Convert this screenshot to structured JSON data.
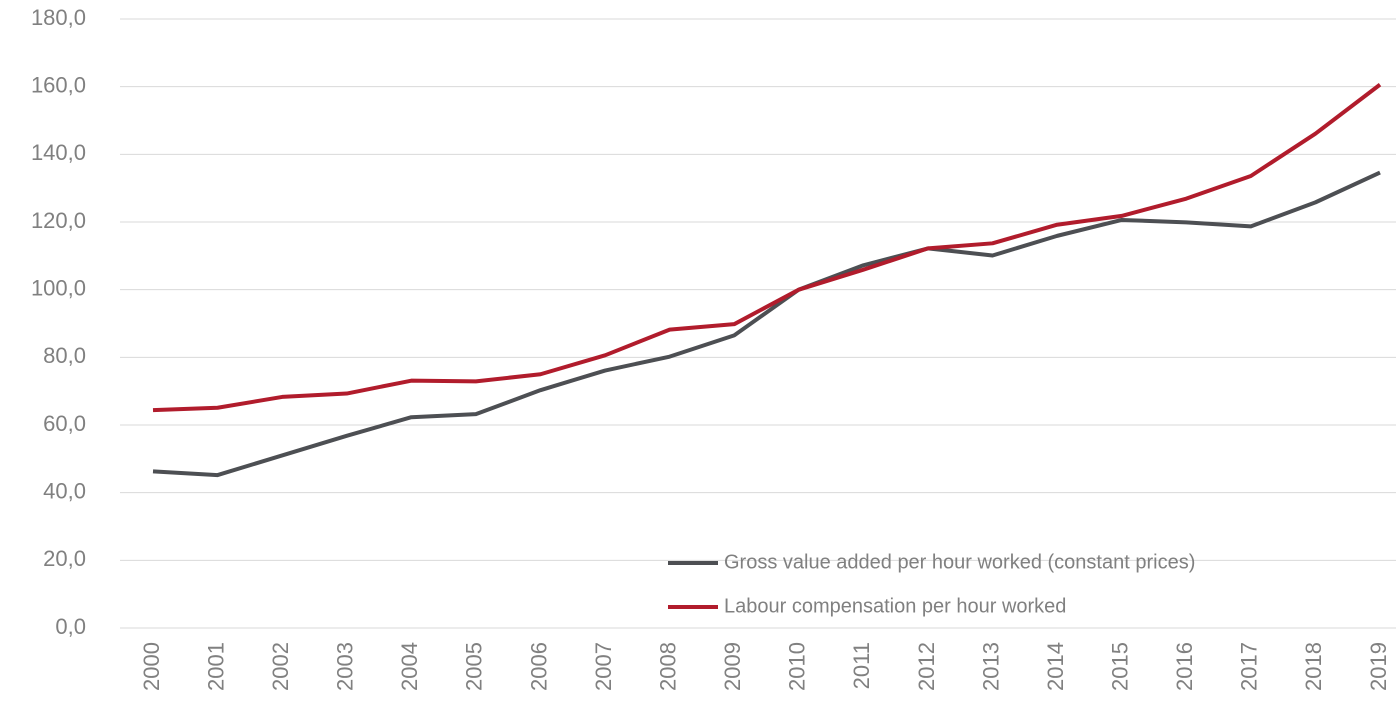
{
  "chart_data": {
    "type": "line",
    "categories": [
      "2000",
      "2001",
      "2002",
      "2003",
      "2004",
      "2005",
      "2006",
      "2007",
      "2008",
      "2009",
      "2010",
      "2011",
      "2012",
      "2013",
      "2014",
      "2015",
      "2016",
      "2017",
      "2018",
      "2019"
    ],
    "series": [
      {
        "name": "Gross value added per hour worked (constant prices)",
        "color": "#4d4f53",
        "values": [
          46.3,
          45.2,
          51.0,
          56.8,
          62.3,
          63.2,
          70.3,
          76.1,
          80.2,
          86.5,
          100.0,
          107.2,
          112.2,
          110.1,
          115.9,
          120.6,
          119.9,
          118.7,
          125.8,
          134.6
        ]
      },
      {
        "name": "Labour compensation per hour worked",
        "color": "#b11c2c",
        "values": [
          64.4,
          65.1,
          68.3,
          69.3,
          73.1,
          72.9,
          75.0,
          80.6,
          88.2,
          89.8,
          100.0,
          105.9,
          112.2,
          113.7,
          119.2,
          121.8,
          126.9,
          133.6,
          146.1,
          160.6
        ]
      }
    ],
    "ylim": [
      0,
      180
    ],
    "yticks": [
      {
        "value": 0,
        "label": "0,0"
      },
      {
        "value": 20,
        "label": "20,0"
      },
      {
        "value": 40,
        "label": "40,0"
      },
      {
        "value": 60,
        "label": "60,0"
      },
      {
        "value": 80,
        "label": "80,0"
      },
      {
        "value": 100,
        "label": "100,0"
      },
      {
        "value": 120,
        "label": "120,0"
      },
      {
        "value": 140,
        "label": "140,0"
      },
      {
        "value": 160,
        "label": "160,0"
      },
      {
        "value": 180,
        "label": "180,0"
      }
    ],
    "grid": true,
    "legend_position": "lower right"
  }
}
